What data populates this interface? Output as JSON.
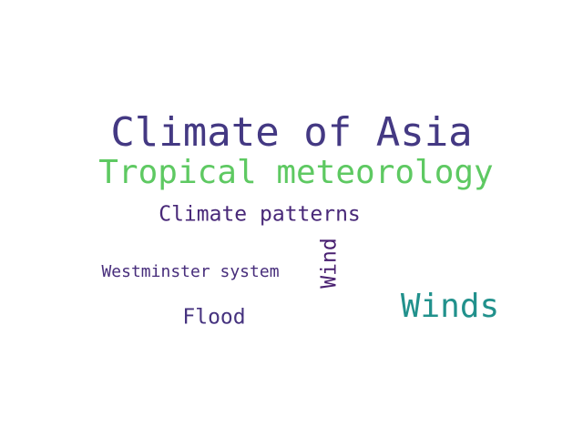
{
  "words": [
    {
      "id": "climate-of-asia",
      "text": "Climate of Asia",
      "color": "#443983"
    },
    {
      "id": "tropical-meteorology",
      "text": "Tropical meteorology",
      "color": "#5ec962"
    },
    {
      "id": "climate-patterns",
      "text": "Climate patterns",
      "color": "#482878"
    },
    {
      "id": "westminster-system",
      "text": "Westminster system",
      "color": "#472d7b"
    },
    {
      "id": "flood",
      "text": "Flood",
      "color": "#46337f"
    },
    {
      "id": "winds",
      "text": "Winds",
      "color": "#21918c"
    },
    {
      "id": "wind",
      "text": "Wind",
      "color": "#481f70",
      "rotated": true
    }
  ]
}
